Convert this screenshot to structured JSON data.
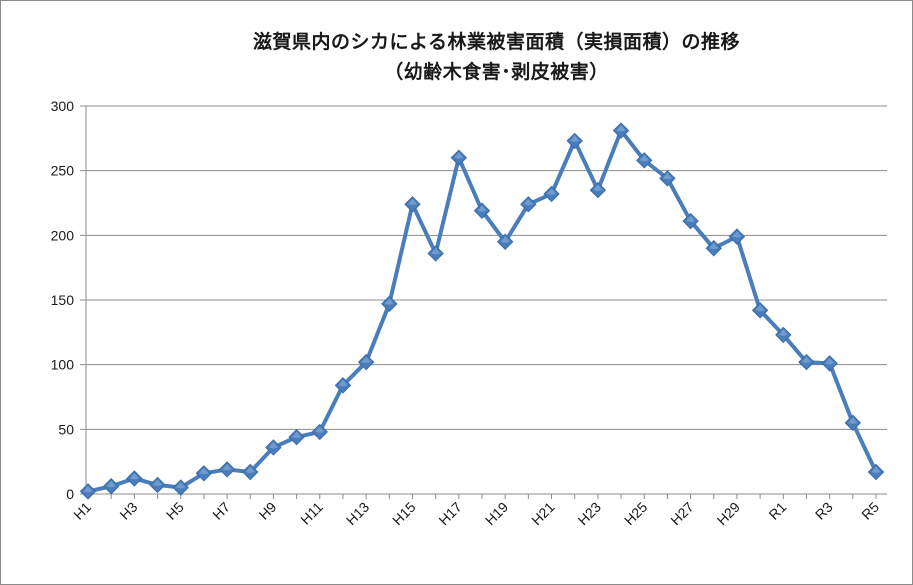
{
  "chart_data": {
    "type": "line",
    "title": "滋賀県内のシカによる林業被害面積（実損面積）の推移",
    "subtitle": "（幼齢木食害･剥皮被害）",
    "xlabel": "",
    "ylabel": "",
    "ylim": [
      0,
      300
    ],
    "yticks": [
      0,
      50,
      100,
      150,
      200,
      250,
      300
    ],
    "grid": true,
    "legend": "none",
    "categories": [
      "H1",
      "H2",
      "H3",
      "H4",
      "H5",
      "H6",
      "H7",
      "H8",
      "H9",
      "H10",
      "H11",
      "H12",
      "H13",
      "H14",
      "H15",
      "H16",
      "H17",
      "H18",
      "H19",
      "H20",
      "H21",
      "H22",
      "H23",
      "H24",
      "H25",
      "H26",
      "H27",
      "H28",
      "H29",
      "H30",
      "R1",
      "R2",
      "R3",
      "R4",
      "R5"
    ],
    "tick_labels": [
      "H1",
      "H3",
      "H5",
      "H7",
      "H9",
      "H11",
      "H13",
      "H15",
      "H17",
      "H19",
      "H21",
      "H23",
      "H25",
      "H27",
      "H29",
      "R1",
      "R3",
      "R5"
    ],
    "series": [
      {
        "values": [
          2,
          6,
          12,
          7,
          5,
          16,
          19,
          17,
          36,
          44,
          48,
          84,
          102,
          147,
          224,
          186,
          260,
          219,
          195,
          224,
          232,
          273,
          235,
          281,
          258,
          244,
          211,
          190,
          199,
          142,
          123,
          102,
          101,
          55,
          17
        ],
        "color": "#4a7ebb"
      }
    ]
  }
}
